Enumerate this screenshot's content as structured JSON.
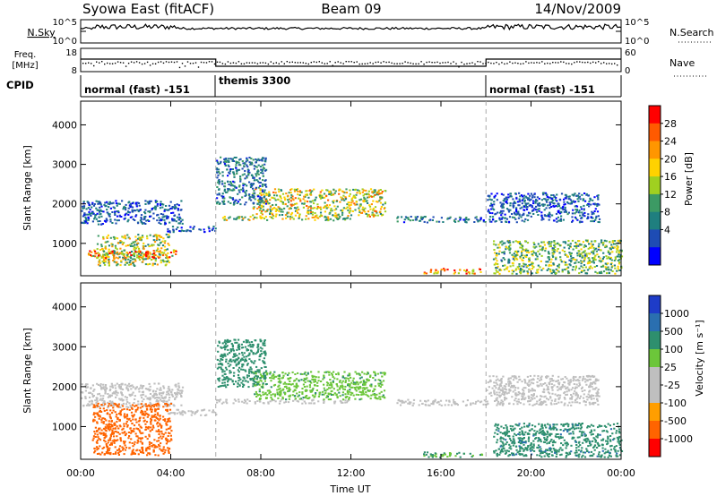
{
  "header": {
    "station": "Syowa East (fitACF)",
    "beam": "Beam 09",
    "date": "14/Nov/2009"
  },
  "noise_panel": {
    "left_label": "N.Sky",
    "left_ticks": [
      "10^5",
      "10^0"
    ],
    "right_label": "N.Search",
    "right_ticks": [
      "10^5",
      "10^0"
    ]
  },
  "freq_panel": {
    "left_label_1": "Freq.",
    "left_label_2": "[MHz]",
    "left_ticks": [
      "18",
      "8"
    ],
    "right_label": "Nave",
    "right_ticks": [
      "60",
      "0"
    ]
  },
  "cpid": {
    "label": "CPID",
    "modes": [
      {
        "name": "normal (fast) -151",
        "start_h": 0,
        "end_h": 6
      },
      {
        "name": "themis 3300",
        "start_h": 6,
        "end_h": 18
      },
      {
        "name": "normal (fast) -151",
        "start_h": 18,
        "end_h": 24
      }
    ]
  },
  "power_panel": {
    "ylabel": "Slant Range [km]",
    "colorbar_label": "Power [dB]",
    "colorbar_ticks": [
      "28",
      "24",
      "20",
      "16",
      "12",
      "8",
      "4"
    ],
    "colorbar_colors": [
      "#ff0000",
      "#ff5a00",
      "#ff9600",
      "#ffd200",
      "#a0d020",
      "#3c9a64",
      "#1f7f7f",
      "#1e4cb4",
      "#0000ff"
    ]
  },
  "velocity_panel": {
    "ylabel": "Slant Range [km]",
    "colorbar_label": "Velocity [m s⁻¹]",
    "colorbar_ticks": [
      "1000",
      "500",
      "100",
      "25",
      "-25",
      "-100",
      "-500",
      "-1000"
    ],
    "colorbar_colors": [
      "#1e3cc8",
      "#2a6fb0",
      "#2e8f6e",
      "#6cc63a",
      "#bfbfbf",
      "#bfbfbf",
      "#ff9e00",
      "#ff6400",
      "#ff0000"
    ]
  },
  "x_axis": {
    "label": "Time UT",
    "ticks": [
      "00:00",
      "04:00",
      "08:00",
      "12:00",
      "16:00",
      "20:00",
      "00:00"
    ]
  },
  "chart_data": [
    {
      "type": "heatmap",
      "title": "Power",
      "ylabel": "Slant Range [km]",
      "xlabel": "Time UT",
      "xlim_hours": [
        0,
        24
      ],
      "ylim": [
        180,
        4600
      ],
      "yticks": [
        1000,
        2000,
        3000,
        4000
      ],
      "colorbar": {
        "label": "Power [dB]",
        "range": [
          0,
          32
        ],
        "ticks": [
          4,
          8,
          12,
          16,
          20,
          24,
          28
        ]
      },
      "echo_regions": [
        {
          "t_start": 0.0,
          "t_end": 4.5,
          "r_start": 1500,
          "r_end": 2100,
          "level": 6
        },
        {
          "t_start": 0.7,
          "t_end": 3.9,
          "r_start": 450,
          "r_end": 1250,
          "level": 16
        },
        {
          "t_start": 0.3,
          "t_end": 4.2,
          "r_start": 650,
          "r_end": 850,
          "level": 22
        },
        {
          "t_start": 3.8,
          "t_end": 6.0,
          "r_start": 1300,
          "r_end": 1450,
          "level": 6
        },
        {
          "t_start": 6.0,
          "t_end": 12.0,
          "r_start": 1600,
          "r_end": 1700,
          "level": 16
        },
        {
          "t_start": 7.6,
          "t_end": 13.5,
          "r_start": 1700,
          "r_end": 2400,
          "level": 18
        },
        {
          "t_start": 6.0,
          "t_end": 8.2,
          "r_start": 2000,
          "r_end": 3200,
          "level": 8
        },
        {
          "t_start": 14.0,
          "t_end": 18.0,
          "r_start": 1550,
          "r_end": 1700,
          "level": 8
        },
        {
          "t_start": 15.2,
          "t_end": 17.8,
          "r_start": 250,
          "r_end": 380,
          "level": 26
        },
        {
          "t_start": 18.0,
          "t_end": 23.0,
          "r_start": 1550,
          "r_end": 2300,
          "level": 6
        },
        {
          "t_start": 18.3,
          "t_end": 24.0,
          "r_start": 250,
          "r_end": 1100,
          "level": 14
        }
      ]
    },
    {
      "type": "heatmap",
      "title": "Velocity",
      "ylabel": "Slant Range [km]",
      "xlabel": "Time UT",
      "xlim_hours": [
        0,
        24
      ],
      "ylim": [
        180,
        4600
      ],
      "yticks": [
        1000,
        2000,
        3000,
        4000
      ],
      "colorbar": {
        "label": "Velocity [m s⁻¹]",
        "range": [
          -1000,
          1000
        ],
        "ticks": [
          1000,
          500,
          100,
          25,
          -25,
          -100,
          -500,
          -1000
        ]
      },
      "echo_regions": [
        {
          "t_start": 0.0,
          "t_end": 4.5,
          "r_start": 1500,
          "r_end": 2100,
          "level": 0
        },
        {
          "t_start": 0.5,
          "t_end": 4.0,
          "r_start": 300,
          "r_end": 1600,
          "level": -300
        },
        {
          "t_start": 3.8,
          "t_end": 6.0,
          "r_start": 1300,
          "r_end": 1450,
          "level": 0
        },
        {
          "t_start": 6.0,
          "t_end": 12.0,
          "r_start": 1600,
          "r_end": 1700,
          "level": 0
        },
        {
          "t_start": 7.6,
          "t_end": 13.5,
          "r_start": 1700,
          "r_end": 2400,
          "level": 80
        },
        {
          "t_start": 6.0,
          "t_end": 8.2,
          "r_start": 2000,
          "r_end": 3200,
          "level": 150
        },
        {
          "t_start": 14.0,
          "t_end": 18.0,
          "r_start": 1550,
          "r_end": 1700,
          "level": 0
        },
        {
          "t_start": 15.2,
          "t_end": 17.8,
          "r_start": 250,
          "r_end": 380,
          "level": 100
        },
        {
          "t_start": 18.0,
          "t_end": 23.0,
          "r_start": 1550,
          "r_end": 2300,
          "level": 0
        },
        {
          "t_start": 18.3,
          "t_end": 24.0,
          "r_start": 250,
          "r_end": 1100,
          "level": 400
        }
      ]
    }
  ]
}
